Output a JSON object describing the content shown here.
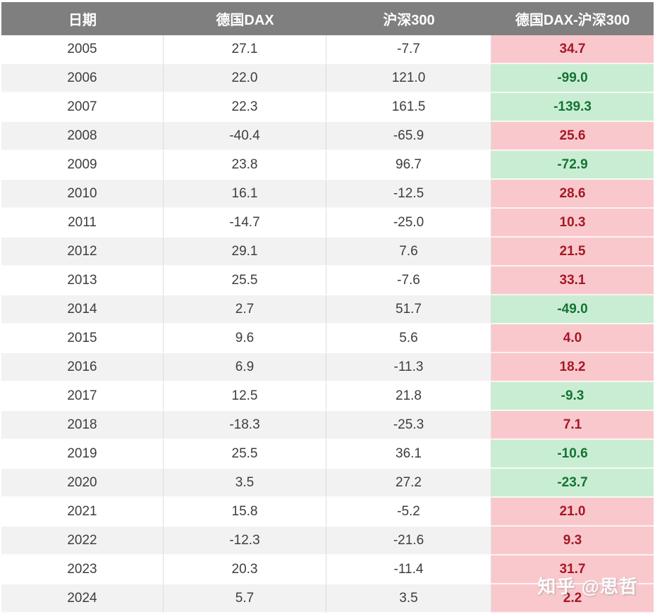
{
  "table": {
    "columns": [
      {
        "label": "日期"
      },
      {
        "label": "德国DAX"
      },
      {
        "label": "沪深300"
      },
      {
        "label": "德国DAX-沪深300"
      }
    ],
    "rows": [
      {
        "year": "2005",
        "dax": "27.1",
        "csi": "-7.7",
        "diff": "34.7",
        "diff_sign": "positive"
      },
      {
        "year": "2006",
        "dax": "22.0",
        "csi": "121.0",
        "diff": "-99.0",
        "diff_sign": "negative"
      },
      {
        "year": "2007",
        "dax": "22.3",
        "csi": "161.5",
        "diff": "-139.3",
        "diff_sign": "negative"
      },
      {
        "year": "2008",
        "dax": "-40.4",
        "csi": "-65.9",
        "diff": "25.6",
        "diff_sign": "positive"
      },
      {
        "year": "2009",
        "dax": "23.8",
        "csi": "96.7",
        "diff": "-72.9",
        "diff_sign": "negative"
      },
      {
        "year": "2010",
        "dax": "16.1",
        "csi": "-12.5",
        "diff": "28.6",
        "diff_sign": "positive"
      },
      {
        "year": "2011",
        "dax": "-14.7",
        "csi": "-25.0",
        "diff": "10.3",
        "diff_sign": "positive"
      },
      {
        "year": "2012",
        "dax": "29.1",
        "csi": "7.6",
        "diff": "21.5",
        "diff_sign": "positive"
      },
      {
        "year": "2013",
        "dax": "25.5",
        "csi": "-7.6",
        "diff": "33.1",
        "diff_sign": "positive"
      },
      {
        "year": "2014",
        "dax": "2.7",
        "csi": "51.7",
        "diff": "-49.0",
        "diff_sign": "negative"
      },
      {
        "year": "2015",
        "dax": "9.6",
        "csi": "5.6",
        "diff": "4.0",
        "diff_sign": "positive"
      },
      {
        "year": "2016",
        "dax": "6.9",
        "csi": "-11.3",
        "diff": "18.2",
        "diff_sign": "positive"
      },
      {
        "year": "2017",
        "dax": "12.5",
        "csi": "21.8",
        "diff": "-9.3",
        "diff_sign": "negative"
      },
      {
        "year": "2018",
        "dax": "-18.3",
        "csi": "-25.3",
        "diff": "7.1",
        "diff_sign": "positive"
      },
      {
        "year": "2019",
        "dax": "25.5",
        "csi": "36.1",
        "diff": "-10.6",
        "diff_sign": "negative"
      },
      {
        "year": "2020",
        "dax": "3.5",
        "csi": "27.2",
        "diff": "-23.7",
        "diff_sign": "negative"
      },
      {
        "year": "2021",
        "dax": "15.8",
        "csi": "-5.2",
        "diff": "21.0",
        "diff_sign": "positive"
      },
      {
        "year": "2022",
        "dax": "-12.3",
        "csi": "-21.6",
        "diff": "9.3",
        "diff_sign": "positive"
      },
      {
        "year": "2023",
        "dax": "20.3",
        "csi": "-11.4",
        "diff": "31.7",
        "diff_sign": "positive"
      },
      {
        "year": "2024",
        "dax": "5.7",
        "csi": "3.5",
        "diff": "2.2",
        "diff_sign": "positive"
      }
    ]
  },
  "watermark": {
    "text": "知乎 @思哲"
  },
  "colors": {
    "header_bg": "#7f7f7f",
    "header_text": "#ffffff",
    "row_stripe": "#f2f2f2",
    "positive_bg": "#f9c8cd",
    "positive_text": "#a51825",
    "negative_bg": "#c9edd3",
    "negative_text": "#157333"
  },
  "chart_data": {
    "type": "table",
    "title": "",
    "columns": [
      "日期",
      "德国DAX",
      "沪深300",
      "德国DAX-沪深300"
    ],
    "rows": [
      [
        2005,
        27.1,
        -7.7,
        34.7
      ],
      [
        2006,
        22.0,
        121.0,
        -99.0
      ],
      [
        2007,
        22.3,
        161.5,
        -139.3
      ],
      [
        2008,
        -40.4,
        -65.9,
        25.6
      ],
      [
        2009,
        23.8,
        96.7,
        -72.9
      ],
      [
        2010,
        16.1,
        -12.5,
        28.6
      ],
      [
        2011,
        -14.7,
        -25.0,
        10.3
      ],
      [
        2012,
        29.1,
        7.6,
        21.5
      ],
      [
        2013,
        25.5,
        -7.6,
        33.1
      ],
      [
        2014,
        2.7,
        51.7,
        -49.0
      ],
      [
        2015,
        9.6,
        5.6,
        4.0
      ],
      [
        2016,
        6.9,
        -11.3,
        18.2
      ],
      [
        2017,
        12.5,
        21.8,
        -9.3
      ],
      [
        2018,
        -18.3,
        -25.3,
        7.1
      ],
      [
        2019,
        25.5,
        36.1,
        -10.6
      ],
      [
        2020,
        3.5,
        27.2,
        -23.7
      ],
      [
        2021,
        15.8,
        -5.2,
        21.0
      ],
      [
        2022,
        -12.3,
        -21.6,
        9.3
      ],
      [
        2023,
        20.3,
        -11.4,
        31.7
      ],
      [
        2024,
        5.7,
        3.5,
        2.2
      ]
    ],
    "conditional_formatting": "last column: positive = pink bg / dark red text, negative = green bg / dark green text",
    "legend_position": "none",
    "grid": true
  }
}
